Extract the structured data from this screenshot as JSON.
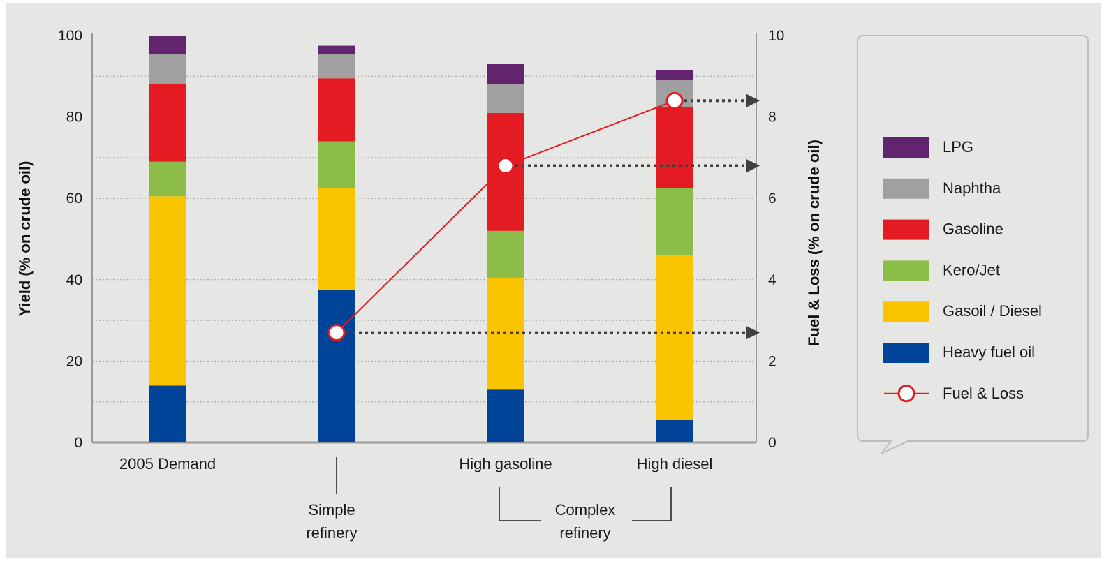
{
  "chart_data": {
    "type": "bar",
    "stacked": true,
    "categories": [
      "2005 Demand",
      "",
      "High gasoline",
      "High diesel"
    ],
    "group_labels": {
      "simple": "Simple\nrefinery",
      "complex": "Complex\nrefinery"
    },
    "series": [
      {
        "name": "Heavy fuel oil",
        "color": "#00449a",
        "values": [
          14,
          37.5,
          13,
          5.5
        ]
      },
      {
        "name": "Gasoil / Diesel",
        "color": "#fbc400",
        "values": [
          46.5,
          25,
          27.5,
          40.5
        ]
      },
      {
        "name": "Kero/Jet",
        "color": "#8dbd49",
        "values": [
          8.5,
          11.5,
          11.5,
          16.5
        ]
      },
      {
        "name": "Gasoline",
        "color": "#e41b22",
        "values": [
          19,
          15.5,
          29,
          20
        ]
      },
      {
        "name": "Naphtha",
        "color": "#a0a0a0",
        "values": [
          7.5,
          6,
          7,
          6.5
        ]
      },
      {
        "name": "LPG",
        "color": "#62236f",
        "values": [
          4.5,
          2,
          5,
          2.5
        ]
      }
    ],
    "line_series": {
      "name": "Fuel & Loss",
      "color": "#e41b22",
      "axis": "right",
      "values": [
        null,
        2.7,
        6.8,
        8.4
      ]
    },
    "ylabel": "Yield (% on crude oil)",
    "y2label": "Fuel & Loss (% on crude oil)",
    "ylim": [
      0,
      100
    ],
    "y2lim": [
      0,
      10
    ],
    "yticks": [
      "0",
      "20",
      "40",
      "60",
      "80",
      "100"
    ],
    "y2ticks": [
      "0",
      "2",
      "4",
      "6",
      "8",
      "10"
    ],
    "grid": "dotted-horizontal",
    "legend_position": "right",
    "legend_order": [
      "LPG",
      "Naphtha",
      "Gasoline",
      "Kero/Jet",
      "Gasoil / Diesel",
      "Heavy fuel oil",
      "Fuel & Loss"
    ],
    "colors": {
      "background": "#e6e6e5",
      "axis": "#9a9a9a",
      "grid": "#9a9a9a",
      "legend_border": "#bdbdbd",
      "dotted_arrow": "#404040"
    }
  }
}
